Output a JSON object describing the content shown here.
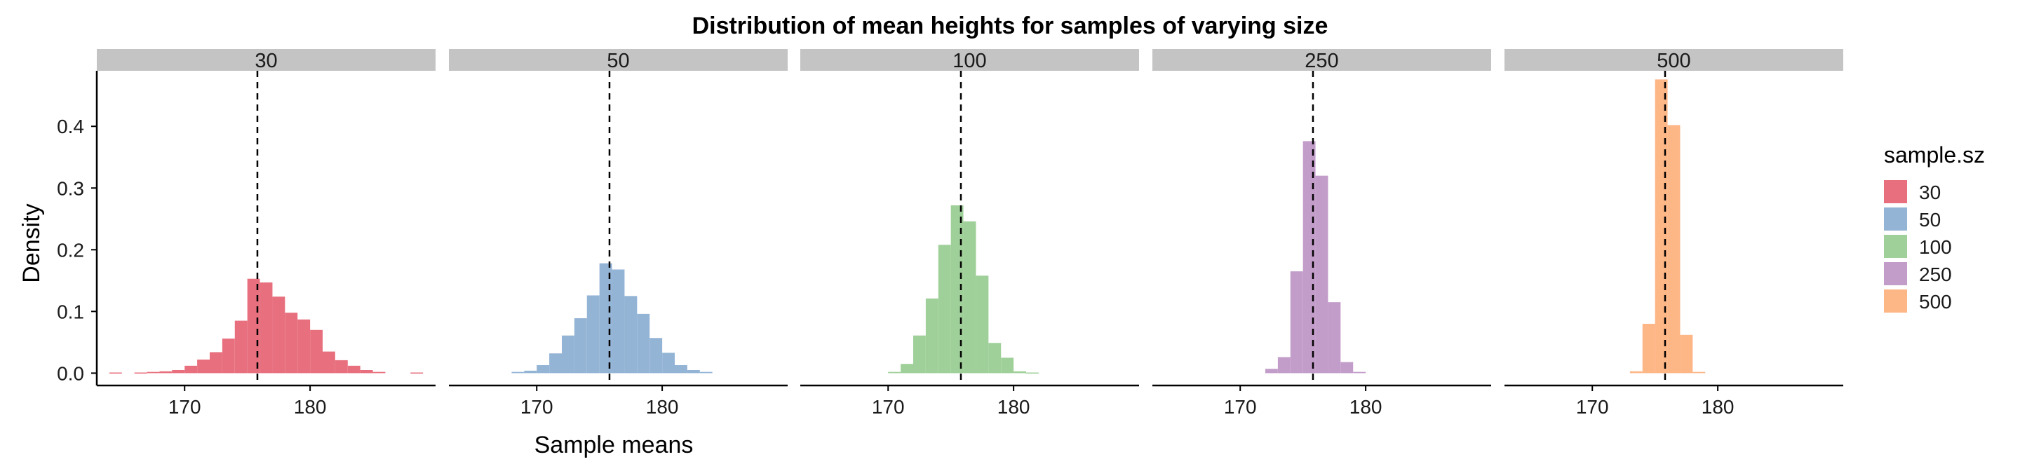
{
  "chart_data": {
    "type": "bar",
    "subtype": "faceted-histogram",
    "title": "Distribution of mean heights for samples of varying size",
    "xlabel": "Sample means",
    "ylabel": "Density",
    "xlim": [
      163,
      190
    ],
    "ylim": [
      -0.02,
      0.49
    ],
    "x_ticks": [
      170,
      180
    ],
    "y_ticks": [
      0.0,
      0.1,
      0.2,
      0.3,
      0.4
    ],
    "y_tick_labels": [
      "0.0",
      "0.1",
      "0.2",
      "0.3",
      "0.4"
    ],
    "reference_line": {
      "x": 175.8,
      "style": "dashed"
    },
    "grid": false,
    "legend": {
      "title": "sample.sz",
      "position": "right"
    },
    "facets": [
      {
        "label": "30",
        "color": "#E8707E",
        "bins": [
          {
            "x0": 164,
            "x1": 165,
            "y": 0.001
          },
          {
            "x0": 166,
            "x1": 167,
            "y": 0.001
          },
          {
            "x0": 167,
            "x1": 168,
            "y": 0.002
          },
          {
            "x0": 168,
            "x1": 169,
            "y": 0.003
          },
          {
            "x0": 169,
            "x1": 170,
            "y": 0.005
          },
          {
            "x0": 170,
            "x1": 171,
            "y": 0.012
          },
          {
            "x0": 171,
            "x1": 172,
            "y": 0.022
          },
          {
            "x0": 172,
            "x1": 173,
            "y": 0.034
          },
          {
            "x0": 173,
            "x1": 174,
            "y": 0.056
          },
          {
            "x0": 174,
            "x1": 175,
            "y": 0.085
          },
          {
            "x0": 175,
            "x1": 176,
            "y": 0.153
          },
          {
            "x0": 176,
            "x1": 177,
            "y": 0.147
          },
          {
            "x0": 177,
            "x1": 178,
            "y": 0.124
          },
          {
            "x0": 178,
            "x1": 179,
            "y": 0.098
          },
          {
            "x0": 179,
            "x1": 180,
            "y": 0.087
          },
          {
            "x0": 180,
            "x1": 181,
            "y": 0.07
          },
          {
            "x0": 181,
            "x1": 182,
            "y": 0.035
          },
          {
            "x0": 182,
            "x1": 183,
            "y": 0.021
          },
          {
            "x0": 183,
            "x1": 184,
            "y": 0.012
          },
          {
            "x0": 184,
            "x1": 185,
            "y": 0.005
          },
          {
            "x0": 185,
            "x1": 186,
            "y": 0.002
          },
          {
            "x0": 188,
            "x1": 189,
            "y": 0.001
          }
        ]
      },
      {
        "label": "50",
        "color": "#94B4D6",
        "bins": [
          {
            "x0": 168,
            "x1": 169,
            "y": 0.002
          },
          {
            "x0": 169,
            "x1": 170,
            "y": 0.004
          },
          {
            "x0": 170,
            "x1": 171,
            "y": 0.013
          },
          {
            "x0": 171,
            "x1": 172,
            "y": 0.032
          },
          {
            "x0": 172,
            "x1": 173,
            "y": 0.061
          },
          {
            "x0": 173,
            "x1": 174,
            "y": 0.089
          },
          {
            "x0": 174,
            "x1": 175,
            "y": 0.126
          },
          {
            "x0": 175,
            "x1": 176,
            "y": 0.178
          },
          {
            "x0": 176,
            "x1": 177,
            "y": 0.168
          },
          {
            "x0": 177,
            "x1": 178,
            "y": 0.125
          },
          {
            "x0": 178,
            "x1": 179,
            "y": 0.096
          },
          {
            "x0": 179,
            "x1": 180,
            "y": 0.057
          },
          {
            "x0": 180,
            "x1": 181,
            "y": 0.033
          },
          {
            "x0": 181,
            "x1": 182,
            "y": 0.013
          },
          {
            "x0": 182,
            "x1": 183,
            "y": 0.005
          },
          {
            "x0": 183,
            "x1": 184,
            "y": 0.002
          }
        ]
      },
      {
        "label": "100",
        "color": "#A0D09A",
        "bins": [
          {
            "x0": 170,
            "x1": 171,
            "y": 0.002
          },
          {
            "x0": 171,
            "x1": 172,
            "y": 0.015
          },
          {
            "x0": 172,
            "x1": 173,
            "y": 0.061
          },
          {
            "x0": 173,
            "x1": 174,
            "y": 0.121
          },
          {
            "x0": 174,
            "x1": 175,
            "y": 0.208
          },
          {
            "x0": 175,
            "x1": 176,
            "y": 0.272
          },
          {
            "x0": 176,
            "x1": 177,
            "y": 0.246
          },
          {
            "x0": 177,
            "x1": 178,
            "y": 0.158
          },
          {
            "x0": 178,
            "x1": 179,
            "y": 0.049
          },
          {
            "x0": 179,
            "x1": 180,
            "y": 0.025
          },
          {
            "x0": 180,
            "x1": 181,
            "y": 0.003
          },
          {
            "x0": 181,
            "x1": 182,
            "y": 0.001
          }
        ]
      },
      {
        "label": "250",
        "color": "#C39DCA",
        "bins": [
          {
            "x0": 172,
            "x1": 173,
            "y": 0.007
          },
          {
            "x0": 173,
            "x1": 174,
            "y": 0.026
          },
          {
            "x0": 174,
            "x1": 175,
            "y": 0.165
          },
          {
            "x0": 175,
            "x1": 176,
            "y": 0.376
          },
          {
            "x0": 176,
            "x1": 177,
            "y": 0.32
          },
          {
            "x0": 177,
            "x1": 178,
            "y": 0.115
          },
          {
            "x0": 178,
            "x1": 179,
            "y": 0.018
          },
          {
            "x0": 179,
            "x1": 180,
            "y": 0.002
          }
        ]
      },
      {
        "label": "500",
        "color": "#FDB686",
        "bins": [
          {
            "x0": 173,
            "x1": 174,
            "y": 0.003
          },
          {
            "x0": 174,
            "x1": 175,
            "y": 0.08
          },
          {
            "x0": 175,
            "x1": 176,
            "y": 0.476
          },
          {
            "x0": 176,
            "x1": 177,
            "y": 0.402
          },
          {
            "x0": 177,
            "x1": 178,
            "y": 0.062
          },
          {
            "x0": 178,
            "x1": 179,
            "y": 0.002
          }
        ]
      }
    ]
  }
}
